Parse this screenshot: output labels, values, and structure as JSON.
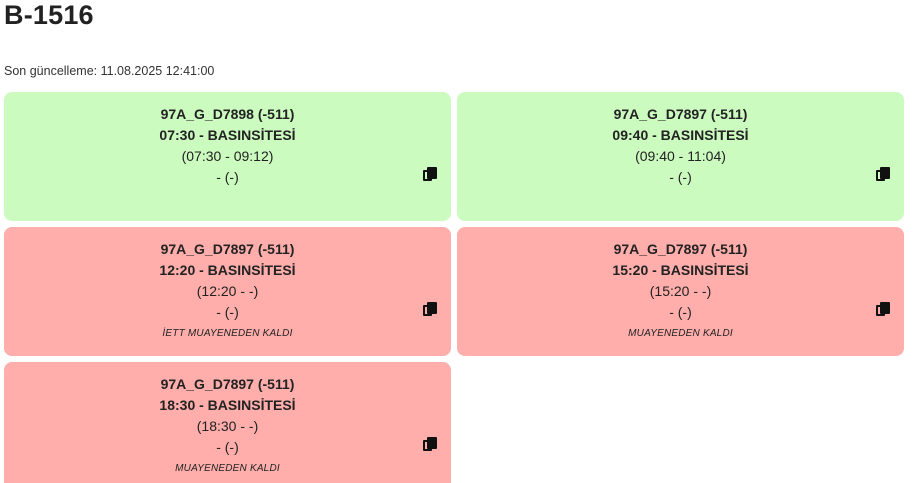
{
  "page": {
    "title": "B-1516",
    "updated": "Son güncelleme: 11.08.2025 12:41:00"
  },
  "cards": [
    {
      "status": "ok",
      "route": "97A_G_D7898 (-511)",
      "trip": "07:30 - BASINSİTESİ",
      "times": "(07:30 - 09:12)",
      "extra": "- (-)",
      "note": ""
    },
    {
      "status": "ok",
      "route": "97A_G_D7897 (-511)",
      "trip": "09:40 - BASINSİTESİ",
      "times": "(09:40 - 11:04)",
      "extra": "- (-)",
      "note": ""
    },
    {
      "status": "fail",
      "route": "97A_G_D7897 (-511)",
      "trip": "12:20 - BASINSİTESİ",
      "times": "(12:20 - -)",
      "extra": "- (-)",
      "note": "İETT MUAYENEDEN KALDI"
    },
    {
      "status": "fail",
      "route": "97A_G_D7897 (-511)",
      "trip": "15:20 - BASINSİTESİ",
      "times": "(15:20 - -)",
      "extra": "- (-)",
      "note": "MUAYENEDEN KALDI"
    },
    {
      "status": "fail",
      "route": "97A_G_D7897 (-511)",
      "trip": "18:30 - BASINSİTESİ",
      "times": "(18:30 - -)",
      "extra": "- (-)",
      "note": "MUAYENEDEN KALDI"
    }
  ],
  "colors": {
    "ok": "#ccfbc0",
    "fail": "#ffaeab"
  },
  "icons": {
    "copy": "copy-icon"
  }
}
